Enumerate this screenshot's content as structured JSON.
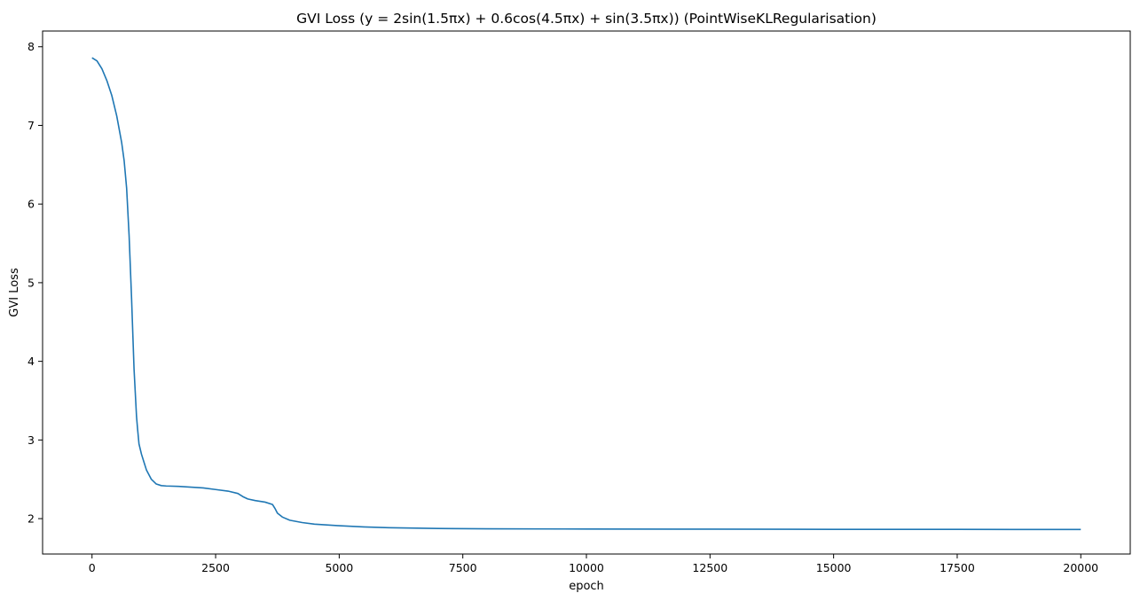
{
  "chart_data": {
    "type": "line",
    "title": "GVI Loss ($y=2\\sin(1.5\\pi x) + 0.6\\cos(4.5\\pi x) + \\sin(3.5\\pi x)$) (PointWiseKLRegularisation)",
    "title_display": "GVI Loss (y = 2sin(1.5πx) + 0.6cos(4.5πx) + sin(3.5πx)) (PointWiseKLRegularisation)",
    "xlabel": "epoch",
    "ylabel": "GVI Loss",
    "xlim": [
      -1000,
      21000
    ],
    "ylim": [
      1.55,
      8.2
    ],
    "x_ticks": [
      0,
      2500,
      5000,
      7500,
      10000,
      12500,
      15000,
      17500,
      20000
    ],
    "x_tick_labels": [
      "0",
      "2500",
      "5000",
      "7500",
      "10000",
      "12500",
      "15000",
      "17500",
      "20000"
    ],
    "y_ticks": [
      2,
      3,
      4,
      5,
      6,
      7,
      8
    ],
    "y_tick_labels": [
      "2",
      "3",
      "4",
      "5",
      "6",
      "7",
      "8"
    ],
    "grid": false,
    "color": "#1f77b4",
    "series": [
      {
        "x": [
          0,
          100,
          200,
          300,
          400,
          500,
          600,
          650,
          700,
          750,
          800,
          850,
          900,
          920,
          950,
          1000,
          1050,
          1100,
          1200,
          1300,
          1400,
          1500,
          1750,
          2000,
          2250,
          2500,
          2750,
          2950,
          3050,
          3150,
          3300,
          3500,
          3650,
          3700,
          3750,
          3850,
          4000,
          4250,
          4500,
          5000,
          5500,
          6000,
          7000,
          8000,
          10000,
          12500,
          15000,
          17500,
          20000
        ],
        "y": [
          7.86,
          7.82,
          7.72,
          7.57,
          7.38,
          7.12,
          6.78,
          6.55,
          6.2,
          5.6,
          4.8,
          3.9,
          3.3,
          3.15,
          2.95,
          2.82,
          2.72,
          2.62,
          2.5,
          2.44,
          2.42,
          2.415,
          2.41,
          2.4,
          2.39,
          2.37,
          2.35,
          2.32,
          2.28,
          2.25,
          2.23,
          2.21,
          2.18,
          2.13,
          2.07,
          2.02,
          1.98,
          1.95,
          1.93,
          1.91,
          1.895,
          1.885,
          1.875,
          1.87,
          1.868,
          1.866,
          1.864,
          1.863,
          1.862
        ]
      }
    ]
  }
}
